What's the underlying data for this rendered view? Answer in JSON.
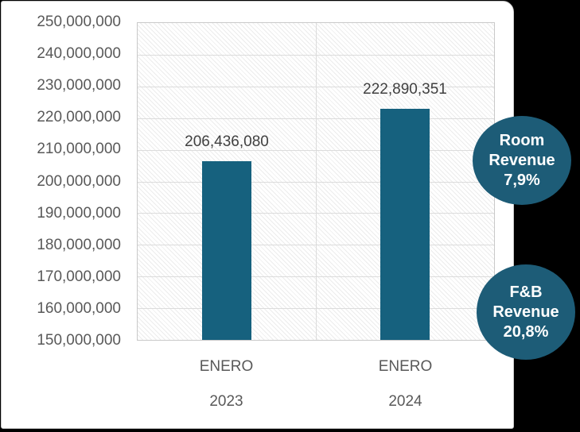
{
  "page": {
    "background_color": "#000000",
    "card_background_color": "#ffffff"
  },
  "chart_data": {
    "type": "bar",
    "title": "",
    "xlabel": "",
    "ylabel": "",
    "categories": [
      "ENERO 2023",
      "ENERO 2024"
    ],
    "category_label_lines": [
      [
        "ENERO",
        "2023"
      ],
      [
        "ENERO",
        "2024"
      ]
    ],
    "values": [
      206436080,
      222890351
    ],
    "data_labels": [
      "206,436,080",
      "222,890,351"
    ],
    "ylim": [
      150000000,
      250000000
    ],
    "ytick_interval": 10000000,
    "ytick_labels": [
      "250,000,000",
      "240,000,000",
      "230,000,000",
      "220,000,000",
      "210,000,000",
      "200,000,000",
      "190,000,000",
      "180,000,000",
      "170,000,000",
      "160,000,000",
      "150,000,000"
    ],
    "bar_color": "#16617E",
    "grid": true,
    "legend_position": "none",
    "plot_background": "diagonal-hatch"
  },
  "badges": [
    {
      "lines": [
        "Room",
        "Revenue",
        "7,9%"
      ],
      "color": "#1D5C77"
    },
    {
      "lines": [
        "F&B",
        "Revenue",
        "20,8%"
      ],
      "color": "#1D5C77"
    }
  ]
}
